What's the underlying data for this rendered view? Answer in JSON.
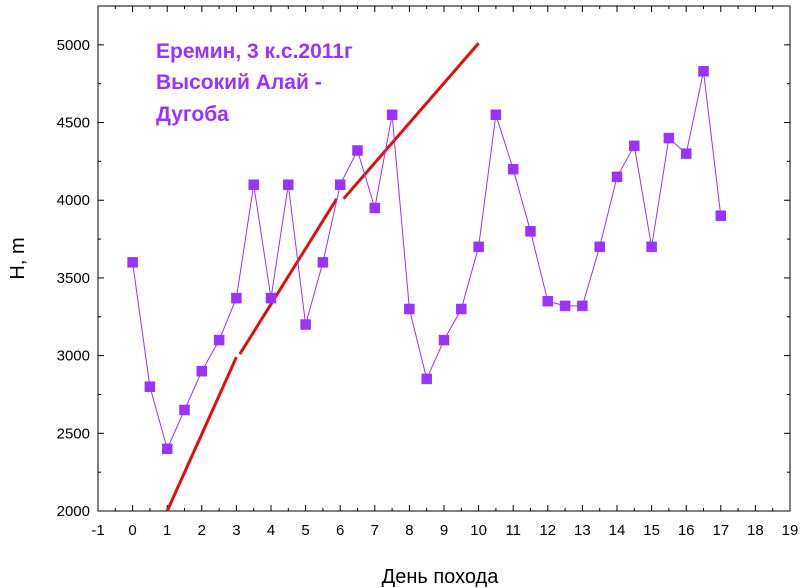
{
  "chart_data": {
    "type": "line",
    "title": "",
    "xlabel": "День похода",
    "ylabel": "H, m",
    "xlim": [
      -1,
      19
    ],
    "ylim": [
      2000,
      5250
    ],
    "xticks": [
      -1,
      0,
      1,
      2,
      3,
      4,
      5,
      6,
      7,
      8,
      9,
      10,
      11,
      12,
      13,
      14,
      15,
      16,
      17,
      18,
      19
    ],
    "yticks": [
      2000,
      2500,
      3000,
      3500,
      4000,
      4500,
      5000
    ],
    "grid": false,
    "annotation": [
      "Еремин, 3 к.с.2011г",
      "Высокий Алай -",
      "Дугоба"
    ],
    "series": [
      {
        "kind": "line-markers",
        "color": "#9933ff",
        "x": [
          0,
          0.5,
          1,
          1.5,
          2,
          2.5,
          3,
          3.5,
          4,
          4.5,
          5,
          5.5,
          6,
          6.5,
          7,
          7.5,
          8,
          8.5,
          9,
          9.5,
          10,
          10.5,
          11,
          11.5,
          12,
          12.5,
          13,
          13.5,
          14,
          14.5,
          15,
          15.5,
          16,
          16.5,
          17
        ],
        "y": [
          3600,
          2800,
          2400,
          2650,
          2900,
          3100,
          3370,
          4100,
          3370,
          4100,
          3200,
          3600,
          4100,
          4320,
          3950,
          4550,
          3300,
          2850,
          3100,
          3300,
          3700,
          4550,
          4200,
          3800,
          3350,
          3320,
          3320,
          3700,
          4150,
          4350,
          3700,
          4400,
          4300,
          4830,
          3900
        ]
      },
      {
        "kind": "trend",
        "color": "#dd1111",
        "segments": [
          [
            [
              1,
              2000
            ],
            [
              3,
              2990
            ]
          ],
          [
            [
              3.1,
              3010
            ],
            [
              5.9,
              4010
            ]
          ],
          [
            [
              6.1,
              4010
            ],
            [
              10,
              5010
            ]
          ]
        ]
      }
    ]
  }
}
